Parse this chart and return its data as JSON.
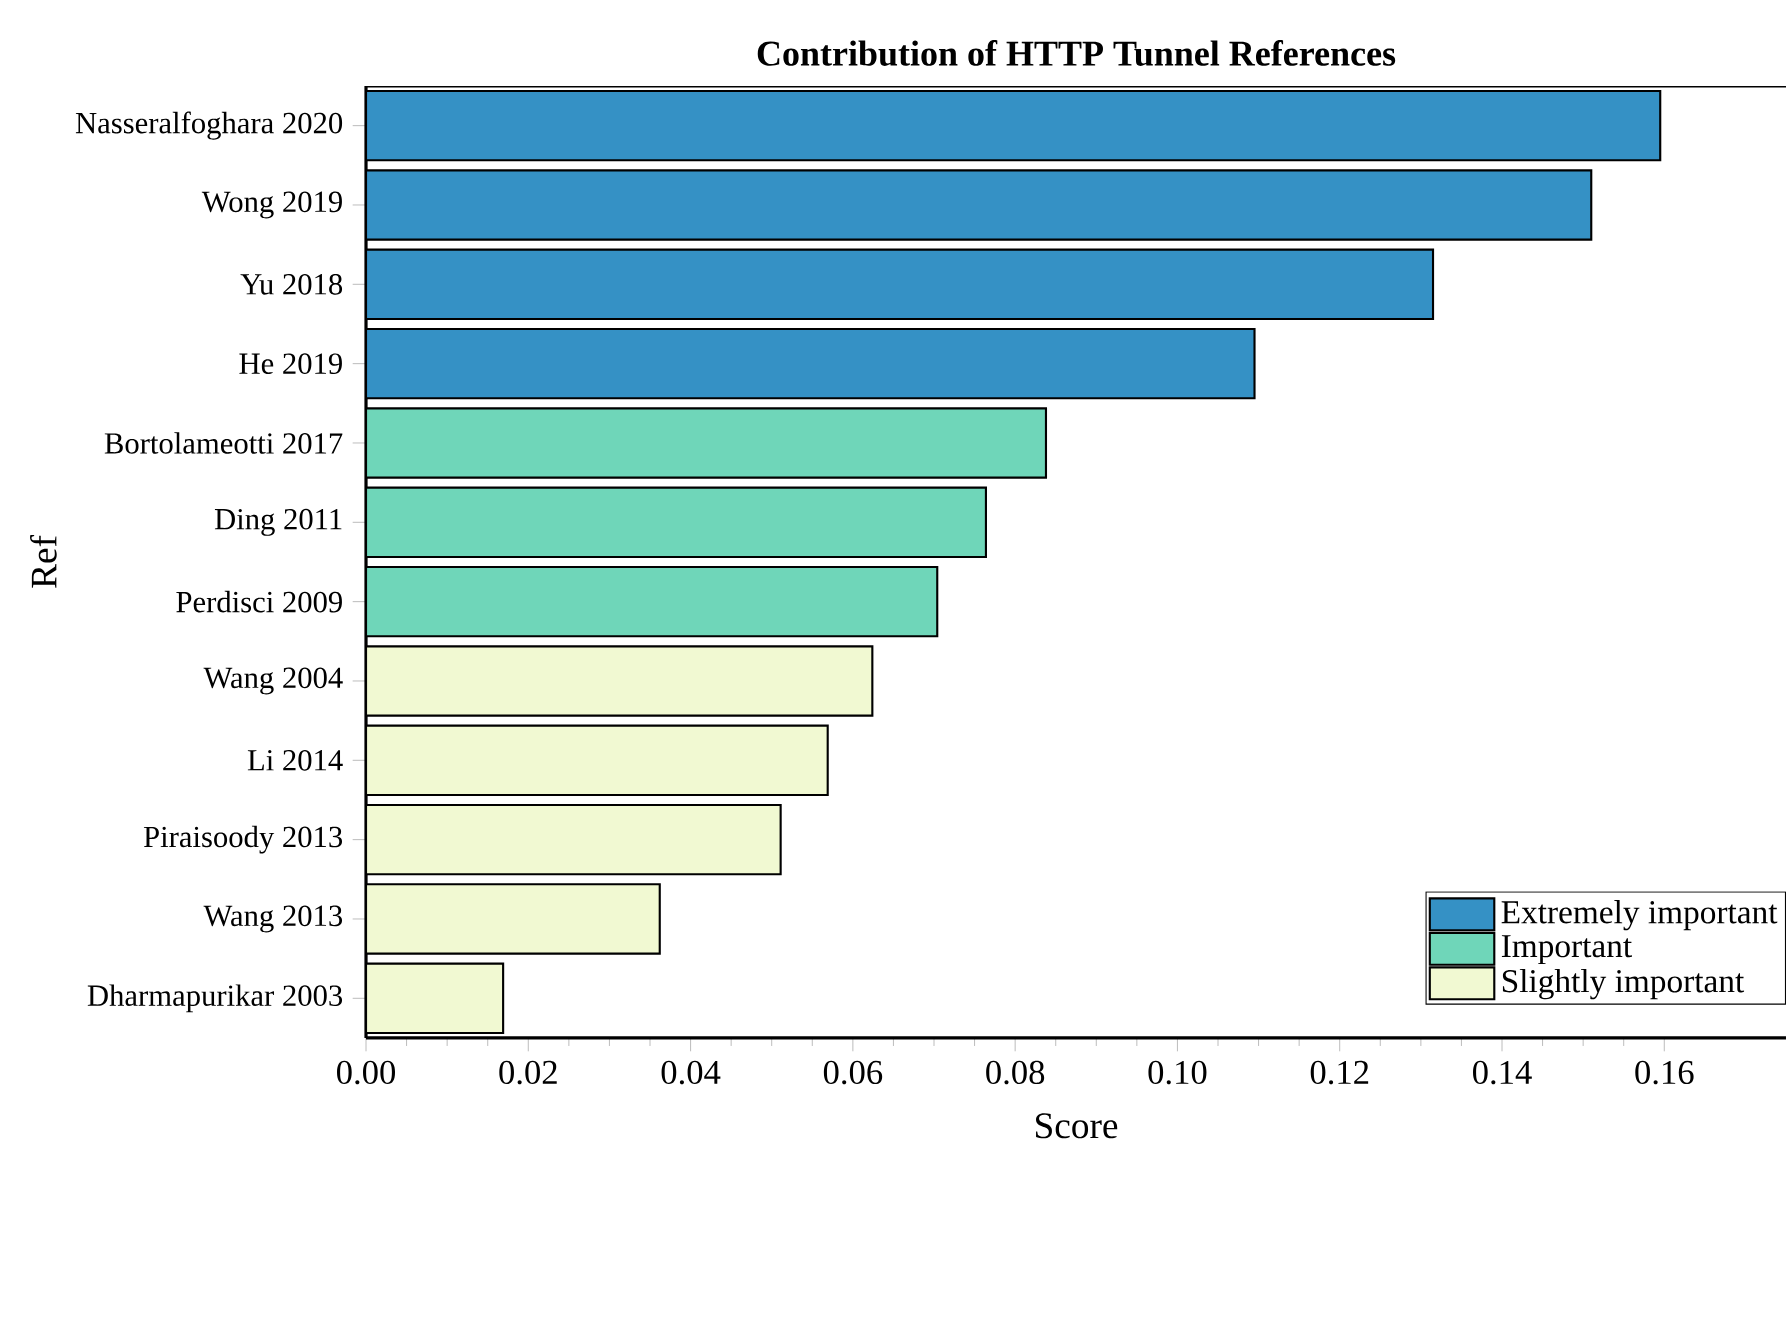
{
  "chart_data": {
    "type": "bar",
    "orientation": "horizontal",
    "title": "Contribution of HTTP Tunnel References",
    "xlabel": "Score",
    "ylabel": "Ref",
    "categories": [
      "Nasseralfoghara 2020",
      "Wong 2019",
      "Yu 2018",
      "He 2019",
      "Bortolameotti 2017",
      "Ding 2011",
      "Perdisci 2009",
      "Wang 2004",
      "Li 2014",
      "Piraisoody 2013",
      "Wang 2013",
      "Dharmapurikar 2003"
    ],
    "series": [
      {
        "name": "Extremely important",
        "color": "#3591c5",
        "values": [
          0.1595,
          0.151,
          0.1315,
          0.1095,
          null,
          null,
          null,
          null,
          null,
          null,
          null,
          null
        ]
      },
      {
        "name": "Important",
        "color": "#6fd6b9",
        "values": [
          null,
          null,
          null,
          null,
          0.0838,
          0.0764,
          0.0704,
          null,
          null,
          null,
          null,
          null
        ]
      },
      {
        "name": "Slightly important",
        "color": "#f1f9d2",
        "values": [
          null,
          null,
          null,
          null,
          null,
          null,
          null,
          0.0624,
          0.0569,
          0.0511,
          0.0362,
          0.0169
        ]
      }
    ],
    "xlim": [
      0,
      0.175
    ],
    "xticks": [
      {
        "value": 0,
        "label": "0.00"
      },
      0.02,
      0.04,
      0.06,
      0.08,
      {
        "value": 0.1,
        "label": "0.10"
      },
      0.12,
      0.14,
      0.16
    ],
    "legend": "bottom right",
    "grid": false
  }
}
